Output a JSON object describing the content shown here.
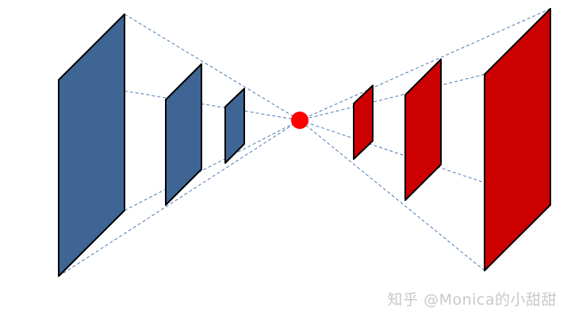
{
  "diagram": {
    "colors": {
      "left_panels": "#3f6594",
      "right_panels": "#cc0000",
      "focal_point": "#ff0000",
      "guide_lines": "#4a7ab5",
      "panel_outline": "#000000",
      "watermark": "#c9c9c9"
    },
    "left_panel_count": 3,
    "right_panel_count": 3,
    "focal_point_count": 1
  },
  "watermark": {
    "text": "知乎 @Monica的小甜甜"
  }
}
